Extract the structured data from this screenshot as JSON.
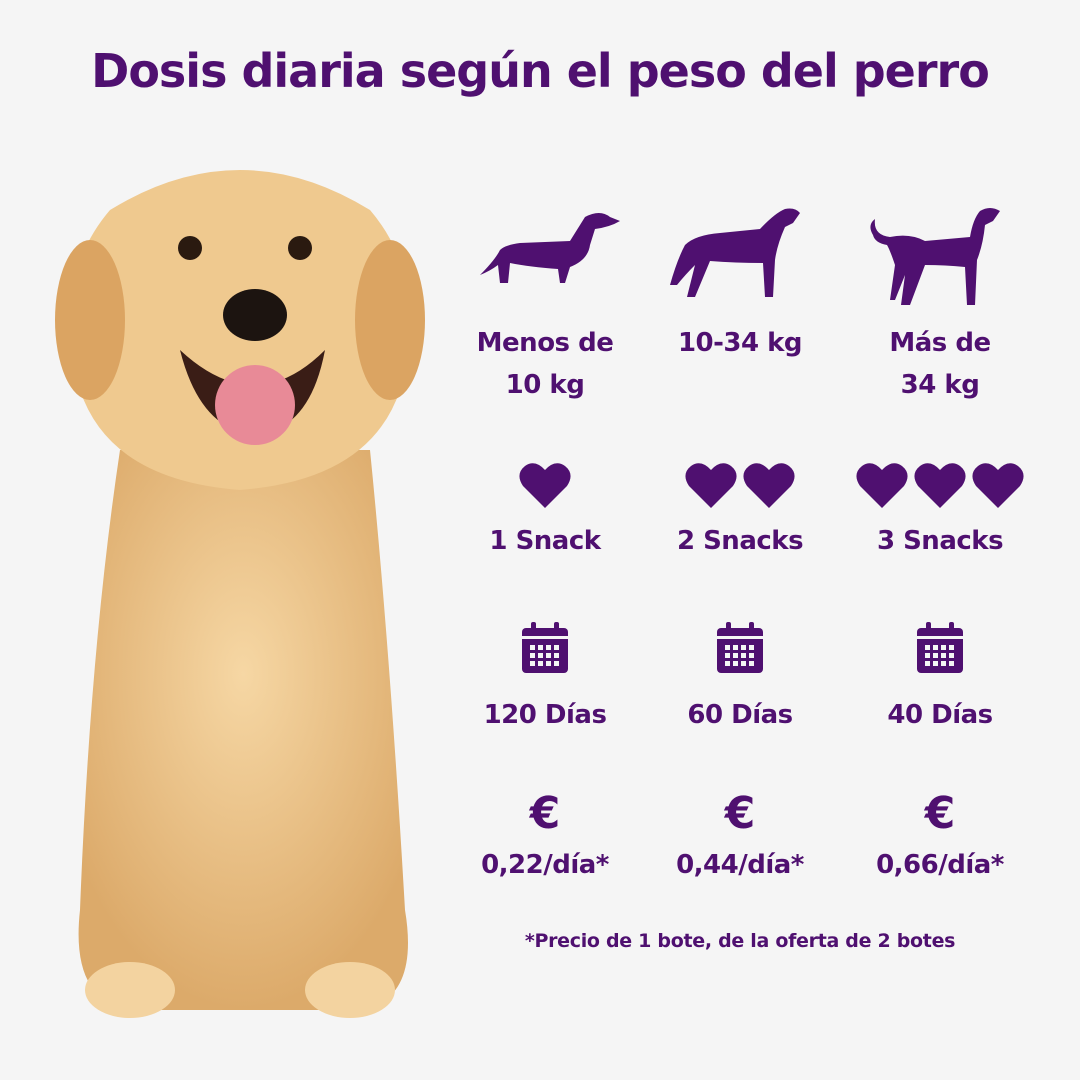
{
  "title": "Dosis diaria según el peso del perro",
  "accent_color": "#4f1070",
  "columns": [
    {
      "weight_line1": "Menos de",
      "weight_line2": "10 kg",
      "snacks": "1 Snack",
      "heart_count": 1,
      "days": "120 Días",
      "price": "0,22/día*",
      "dog_icon": "dachshund-silhouette-icon"
    },
    {
      "weight_line1": "10-34 kg",
      "weight_line2": "",
      "snacks": "2 Snacks",
      "heart_count": 2,
      "days": "60 Días",
      "price": "0,44/día*",
      "dog_icon": "medium-dog-silhouette-icon"
    },
    {
      "weight_line1": "Más de",
      "weight_line2": "34 kg",
      "snacks": "3 Snacks",
      "heart_count": 3,
      "days": "40 Días",
      "price": "0,66/día*",
      "dog_icon": "large-dog-silhouette-icon"
    }
  ],
  "currency_symbol": "€",
  "footnote": "*Precio de 1 bote, de la oferta de 2 botes"
}
